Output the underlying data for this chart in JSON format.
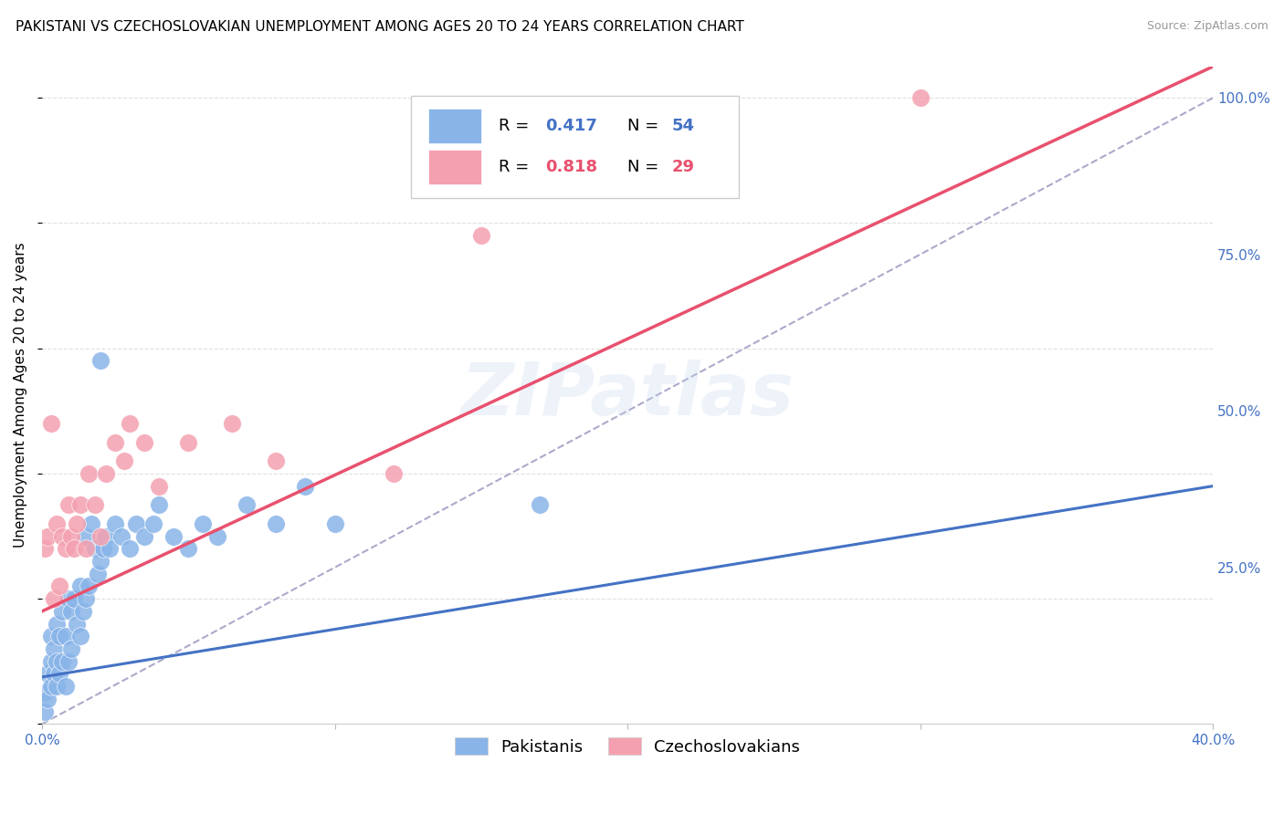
{
  "title": "PAKISTANI VS CZECHOSLOVAKIAN UNEMPLOYMENT AMONG AGES 20 TO 24 YEARS CORRELATION CHART",
  "source": "Source: ZipAtlas.com",
  "ylabel": "Unemployment Among Ages 20 to 24 years",
  "xlim": [
    0.0,
    0.4
  ],
  "ylim": [
    0.0,
    1.05
  ],
  "x_ticks": [
    0.0,
    0.1,
    0.2,
    0.3,
    0.4
  ],
  "x_tick_labels": [
    "0.0%",
    "",
    "",
    "",
    "40.0%"
  ],
  "y_ticks_right": [
    0.25,
    0.5,
    0.75,
    1.0
  ],
  "y_tick_labels_right": [
    "25.0%",
    "50.0%",
    "75.0%",
    "100.0%"
  ],
  "title_fontsize": 11,
  "source_fontsize": 9,
  "axis_label_fontsize": 11,
  "tick_fontsize": 11,
  "watermark": "ZIPatlas",
  "pakistani_color": "#88b4e8",
  "czechoslovakian_color": "#f4a0b0",
  "pakistani_R": 0.417,
  "pakistani_N": 54,
  "czechoslovakian_R": 0.818,
  "czechoslovakian_N": 29,
  "pakistani_line_color": "#4472c4",
  "czechoslovakian_line_color": "#e8516e",
  "ref_line_color": "#aaaacc",
  "grid_color": "#dddddd",
  "pak_scatter_x": [
    0.001,
    0.001,
    0.002,
    0.002,
    0.003,
    0.003,
    0.003,
    0.004,
    0.004,
    0.005,
    0.005,
    0.005,
    0.006,
    0.006,
    0.007,
    0.007,
    0.008,
    0.008,
    0.009,
    0.009,
    0.01,
    0.01,
    0.011,
    0.012,
    0.013,
    0.013,
    0.014,
    0.015,
    0.015,
    0.016,
    0.017,
    0.018,
    0.019,
    0.02,
    0.021,
    0.022,
    0.023,
    0.025,
    0.027,
    0.03,
    0.032,
    0.035,
    0.038,
    0.04,
    0.045,
    0.05,
    0.055,
    0.06,
    0.07,
    0.08,
    0.09,
    0.1,
    0.17,
    0.02
  ],
  "pak_scatter_y": [
    0.02,
    0.05,
    0.04,
    0.08,
    0.06,
    0.1,
    0.14,
    0.08,
    0.12,
    0.06,
    0.1,
    0.16,
    0.08,
    0.14,
    0.1,
    0.18,
    0.06,
    0.14,
    0.1,
    0.2,
    0.12,
    0.18,
    0.2,
    0.16,
    0.14,
    0.22,
    0.18,
    0.2,
    0.3,
    0.22,
    0.32,
    0.28,
    0.24,
    0.26,
    0.28,
    0.3,
    0.28,
    0.32,
    0.3,
    0.28,
    0.32,
    0.3,
    0.32,
    0.35,
    0.3,
    0.28,
    0.32,
    0.3,
    0.35,
    0.32,
    0.38,
    0.32,
    0.35,
    0.58
  ],
  "czech_scatter_x": [
    0.001,
    0.002,
    0.003,
    0.004,
    0.005,
    0.006,
    0.007,
    0.008,
    0.009,
    0.01,
    0.011,
    0.012,
    0.013,
    0.015,
    0.016,
    0.018,
    0.02,
    0.022,
    0.025,
    0.028,
    0.03,
    0.035,
    0.04,
    0.05,
    0.065,
    0.08,
    0.12,
    0.15,
    0.3
  ],
  "czech_scatter_y": [
    0.28,
    0.3,
    0.48,
    0.2,
    0.32,
    0.22,
    0.3,
    0.28,
    0.35,
    0.3,
    0.28,
    0.32,
    0.35,
    0.28,
    0.4,
    0.35,
    0.3,
    0.4,
    0.45,
    0.42,
    0.48,
    0.45,
    0.38,
    0.45,
    0.48,
    0.42,
    0.4,
    0.78,
    1.0
  ],
  "pak_line_x0": 0.0,
  "pak_line_y0": 0.075,
  "pak_line_x1": 0.4,
  "pak_line_y1": 0.38,
  "czech_line_x0": 0.0,
  "czech_line_y0": 0.18,
  "czech_line_x1": 0.4,
  "czech_line_y1": 1.05
}
